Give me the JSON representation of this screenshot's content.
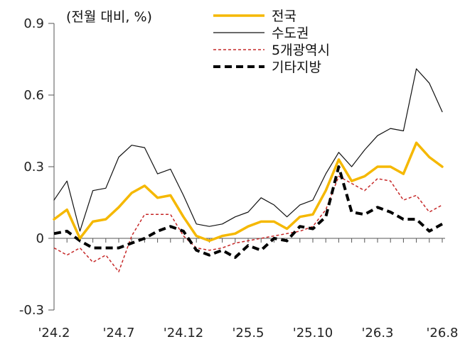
{
  "chart_data": {
    "type": "line",
    "unit_label": "(전월 대비, %)",
    "y_ticks": [
      "0.9",
      "0.6",
      "0.3",
      "0",
      "-0.3"
    ],
    "y_tick_values": [
      0.9,
      0.6,
      0.3,
      0,
      -0.3
    ],
    "ylim": [
      -0.3,
      0.9
    ],
    "x_tick_labels": [
      "'24.2",
      "'24.7",
      "'24.12",
      "'25.5",
      "'25.10",
      "'26.3",
      "'26.8"
    ],
    "x": [
      "24.2",
      "24.3",
      "24.4",
      "24.5",
      "24.6",
      "24.7",
      "24.8",
      "24.9",
      "24.10",
      "24.11",
      "24.12",
      "25.1",
      "25.2",
      "25.3",
      "25.4",
      "25.5",
      "25.6",
      "25.7",
      "25.8",
      "25.9",
      "25.10",
      "25.11",
      "25.12",
      "26.1",
      "26.2",
      "26.3",
      "26.4",
      "26.5",
      "26.6",
      "26.7",
      "26.8"
    ],
    "grid": false,
    "legend_position": "top-center",
    "series": [
      {
        "name": "전국",
        "color": "#F5B800",
        "style": "solid-thick",
        "values": [
          0.08,
          0.12,
          0.0,
          0.07,
          0.08,
          0.13,
          0.19,
          0.22,
          0.17,
          0.18,
          0.09,
          0.01,
          -0.01,
          0.01,
          0.02,
          0.05,
          0.07,
          0.07,
          0.04,
          0.09,
          0.1,
          0.2,
          0.33,
          0.24,
          0.26,
          0.3,
          0.3,
          0.27,
          0.4,
          0.34,
          0.3
        ]
      },
      {
        "name": "수도권",
        "color": "#111111",
        "style": "solid-thin",
        "values": [
          0.16,
          0.24,
          0.03,
          0.2,
          0.21,
          0.34,
          0.39,
          0.38,
          0.27,
          0.29,
          0.18,
          0.06,
          0.05,
          0.06,
          0.09,
          0.11,
          0.17,
          0.14,
          0.09,
          0.14,
          0.16,
          0.27,
          0.36,
          0.3,
          0.37,
          0.43,
          0.46,
          0.45,
          0.71,
          0.65,
          0.53
        ]
      },
      {
        "name": "5개광역시",
        "color": "#C62828",
        "style": "dotted",
        "values": [
          -0.04,
          -0.07,
          -0.04,
          -0.1,
          -0.07,
          -0.14,
          0.01,
          0.1,
          0.1,
          0.1,
          0.01,
          -0.04,
          -0.05,
          -0.04,
          -0.02,
          -0.01,
          0.0,
          0.01,
          0.02,
          0.03,
          0.05,
          0.12,
          0.26,
          0.23,
          0.2,
          0.25,
          0.24,
          0.16,
          0.18,
          0.11,
          0.14
        ]
      },
      {
        "name": "기타지방",
        "color": "#000000",
        "style": "dashed-thick",
        "values": [
          0.02,
          0.03,
          -0.01,
          -0.04,
          -0.04,
          -0.04,
          -0.02,
          0.0,
          0.03,
          0.05,
          0.03,
          -0.05,
          -0.07,
          -0.05,
          -0.08,
          -0.03,
          -0.05,
          0.0,
          -0.01,
          0.05,
          0.04,
          0.09,
          0.3,
          0.11,
          0.1,
          0.13,
          0.11,
          0.08,
          0.08,
          0.03,
          0.06
        ]
      }
    ]
  }
}
